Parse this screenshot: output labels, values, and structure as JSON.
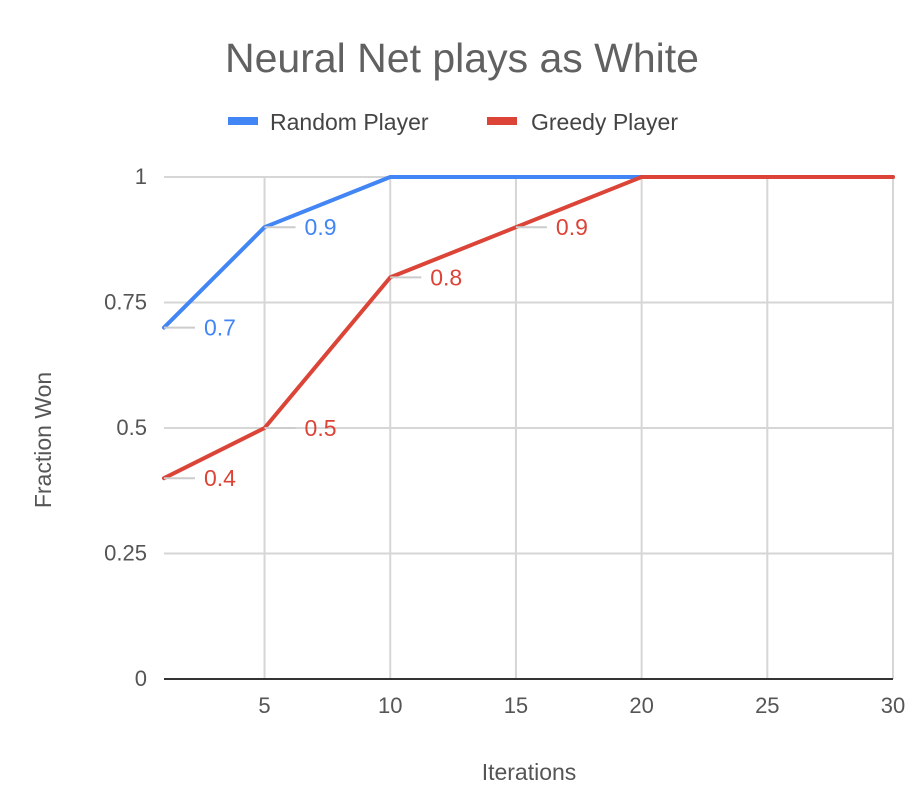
{
  "chart_data": {
    "type": "line",
    "title": "Neural Net plays as White",
    "xlabel": "Iterations",
    "ylabel": "Fraction Won",
    "x_ticks": [
      "5",
      "10",
      "15",
      "20",
      "25",
      "30"
    ],
    "y_ticks": [
      "0",
      "0.25",
      "0.5",
      "0.75",
      "1"
    ],
    "xlim": [
      1,
      30
    ],
    "ylim": [
      0,
      1
    ],
    "grid": true,
    "legend_position": "top",
    "series": [
      {
        "name": "Random Player",
        "color": "#4285f4",
        "points": [
          {
            "x": 1,
            "y": 0.7,
            "label": "0.7"
          },
          {
            "x": 5,
            "y": 0.9,
            "label": "0.9"
          },
          {
            "x": 10,
            "y": 1.0,
            "label": ""
          },
          {
            "x": 20,
            "y": 1.0,
            "label": ""
          },
          {
            "x": 30,
            "y": 1.0,
            "label": ""
          }
        ]
      },
      {
        "name": "Greedy Player",
        "color": "#db4437",
        "points": [
          {
            "x": 1,
            "y": 0.4,
            "label": "0.4"
          },
          {
            "x": 5,
            "y": 0.5,
            "label": "0.5"
          },
          {
            "x": 10,
            "y": 0.8,
            "label": "0.8"
          },
          {
            "x": 20,
            "y": 1.0,
            "label": ""
          },
          {
            "x": 30,
            "y": 1.0,
            "label": ""
          }
        ],
        "extra_labels": [
          {
            "x": 15,
            "y": 0.9,
            "label": "0.9"
          }
        ]
      }
    ]
  }
}
